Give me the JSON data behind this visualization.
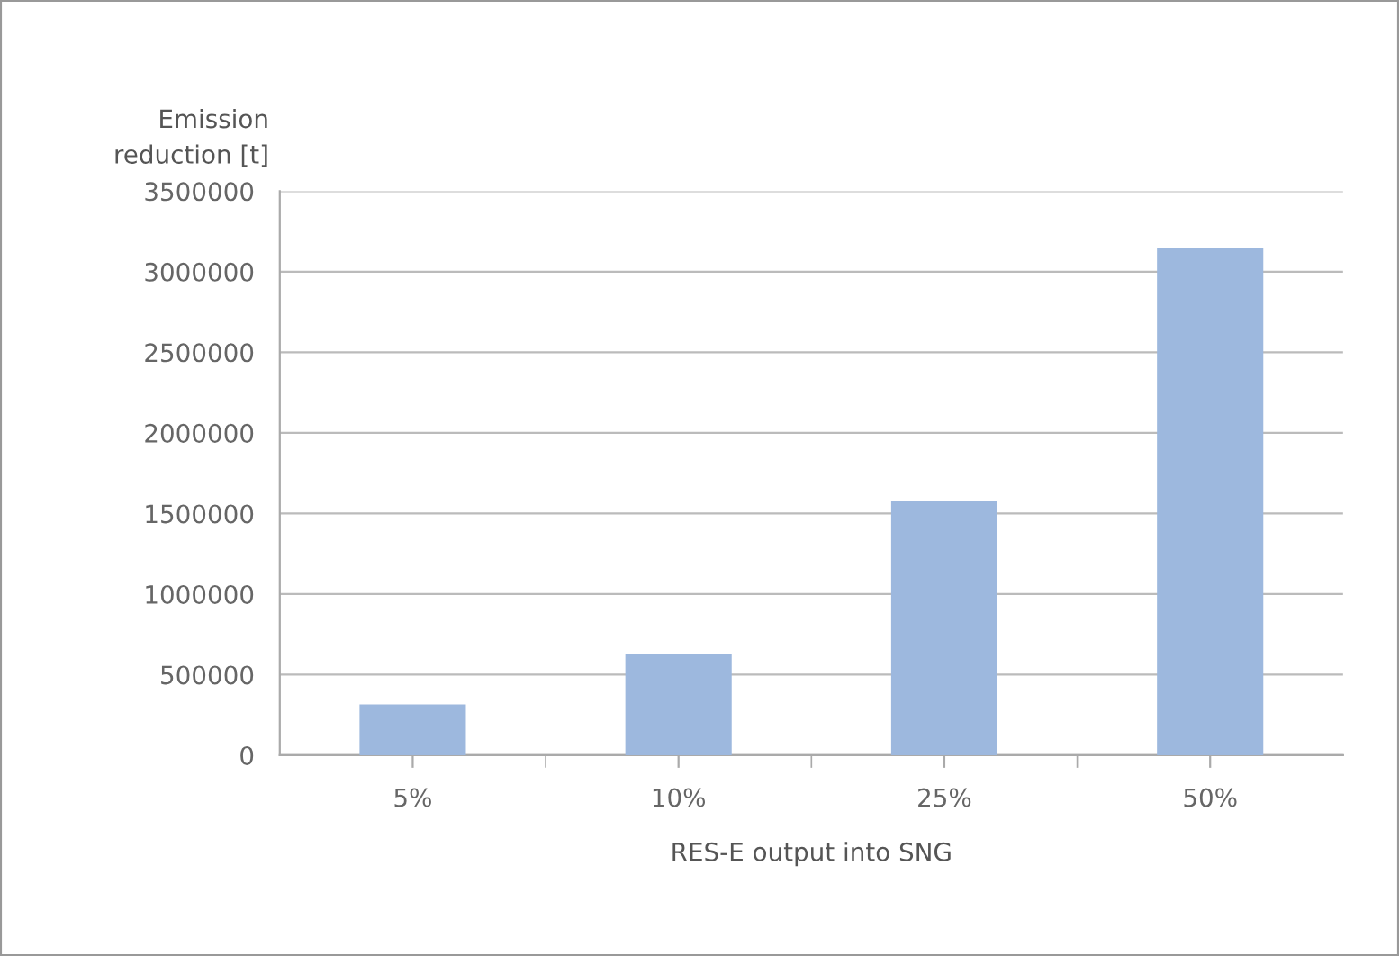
{
  "chart_data": {
    "type": "bar",
    "ylabel": "Emission\nreduction [t]",
    "xlabel": "RES-E output into SNG",
    "categories": [
      "5%",
      "10%",
      "25%",
      "50%"
    ],
    "values": [
      315000,
      630000,
      1575000,
      3150000
    ],
    "color": "#9db8de",
    "ylim": [
      0,
      3500000
    ],
    "yticks": [
      0,
      500000,
      1000000,
      1500000,
      2000000,
      2500000,
      3000000,
      3500000
    ],
    "grid": "y"
  }
}
